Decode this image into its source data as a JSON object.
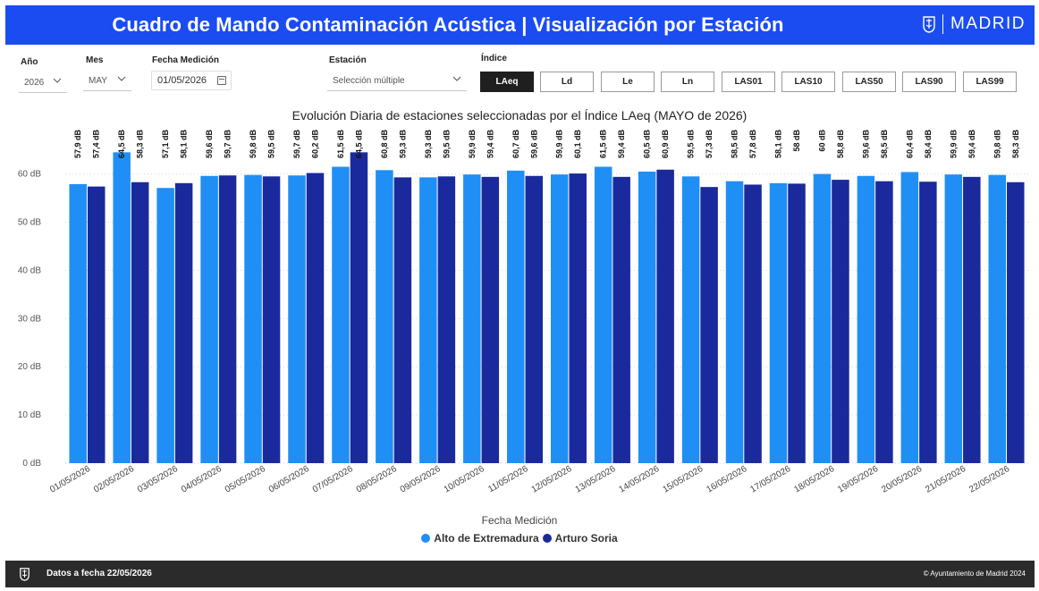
{
  "header": {
    "title": "Cuadro de Mando Contaminación Acústica | Visualización por Estación",
    "logo_text": "MADRID",
    "bg_color": "#1a4cf2"
  },
  "filters": {
    "year_label": "Año",
    "year_value": "2026",
    "month_label": "Mes",
    "month_value": "MAY",
    "date_label": "Fecha Medición",
    "date_value": "01/05/2026",
    "station_label": "Estación",
    "station_value": "Selección múltiple",
    "index_label": "Índice",
    "index_buttons": [
      "LAeq",
      "Ld",
      "Le",
      "Ln",
      "LAS01",
      "LAS10",
      "LAS50",
      "LAS90",
      "LAS99"
    ],
    "index_selected": "LAeq"
  },
  "chart_data": {
    "type": "bar",
    "title": "Evolución Diaria de estaciones seleccionadas por el Índice LAeq (MAYO de 2026)",
    "xlabel": "Fecha Medición",
    "ylabel": "",
    "ylim": [
      0,
      65
    ],
    "yticks": [
      "0 dB",
      "10 dB",
      "20 dB",
      "30 dB",
      "40 dB",
      "50 dB",
      "60 dB"
    ],
    "grid": true,
    "legend_position": "bottom-center",
    "categories": [
      "01/05/2026",
      "02/05/2026",
      "03/05/2026",
      "04/05/2026",
      "05/05/2026",
      "06/05/2026",
      "07/05/2026",
      "08/05/2026",
      "09/05/2026",
      "10/05/2026",
      "11/05/2026",
      "12/05/2026",
      "13/05/2026",
      "14/05/2026",
      "15/05/2026",
      "16/05/2026",
      "17/05/2026",
      "18/05/2026",
      "19/05/2026",
      "20/05/2026",
      "21/05/2026",
      "22/05/2026"
    ],
    "series": [
      {
        "name": "Alto de Extremadura",
        "color": "#1f8ff5",
        "values": [
          57.9,
          64.5,
          57.1,
          59.6,
          59.8,
          59.7,
          61.5,
          60.8,
          59.3,
          59.9,
          60.7,
          59.9,
          61.5,
          60.5,
          59.5,
          58.5,
          58.1,
          60,
          59.6,
          60.4,
          59.9,
          59.8
        ],
        "labels": [
          "57,9 dB",
          "64,5 dB",
          "57,1 dB",
          "59,6 dB",
          "59,8 dB",
          "59,7 dB",
          "61,5 dB",
          "60,8 dB",
          "59,3 dB",
          "59,9 dB",
          "60,7 dB",
          "59,9 dB",
          "61,5 dB",
          "60,5 dB",
          "59,5 dB",
          "58,5 dB",
          "58,1 dB",
          "60 dB",
          "59,6 dB",
          "60,4 dB",
          "59,9 dB",
          "59,8 dB"
        ]
      },
      {
        "name": "Arturo Soria",
        "color": "#1a2a9c",
        "values": [
          57.4,
          58.3,
          58.1,
          59.7,
          59.5,
          60.2,
          64.5,
          59.3,
          59.5,
          59.4,
          59.6,
          60.1,
          59.4,
          60.9,
          57.3,
          57.8,
          58,
          58.8,
          58.5,
          58.4,
          59.4,
          58.3
        ],
        "labels": [
          "57,4 dB",
          "58,3 dB",
          "58,1 dB",
          "59,7 dB",
          "59,5 dB",
          "60,2 dB",
          "64,5 dB",
          "59,3 dB",
          "59,5 dB",
          "59,4 dB",
          "59,6 dB",
          "60,1 dB",
          "59,4 dB",
          "60,9 dB",
          "57,3 dB",
          "57,8 dB",
          "58 dB",
          "58,8 dB",
          "58,5 dB",
          "58,4 dB",
          "59,4 dB",
          "58,3 dB"
        ]
      }
    ]
  },
  "footer": {
    "date_text": "Datos a fecha 22/05/2026",
    "copyright": "© Ayuntamiento de Madrid 2024"
  }
}
